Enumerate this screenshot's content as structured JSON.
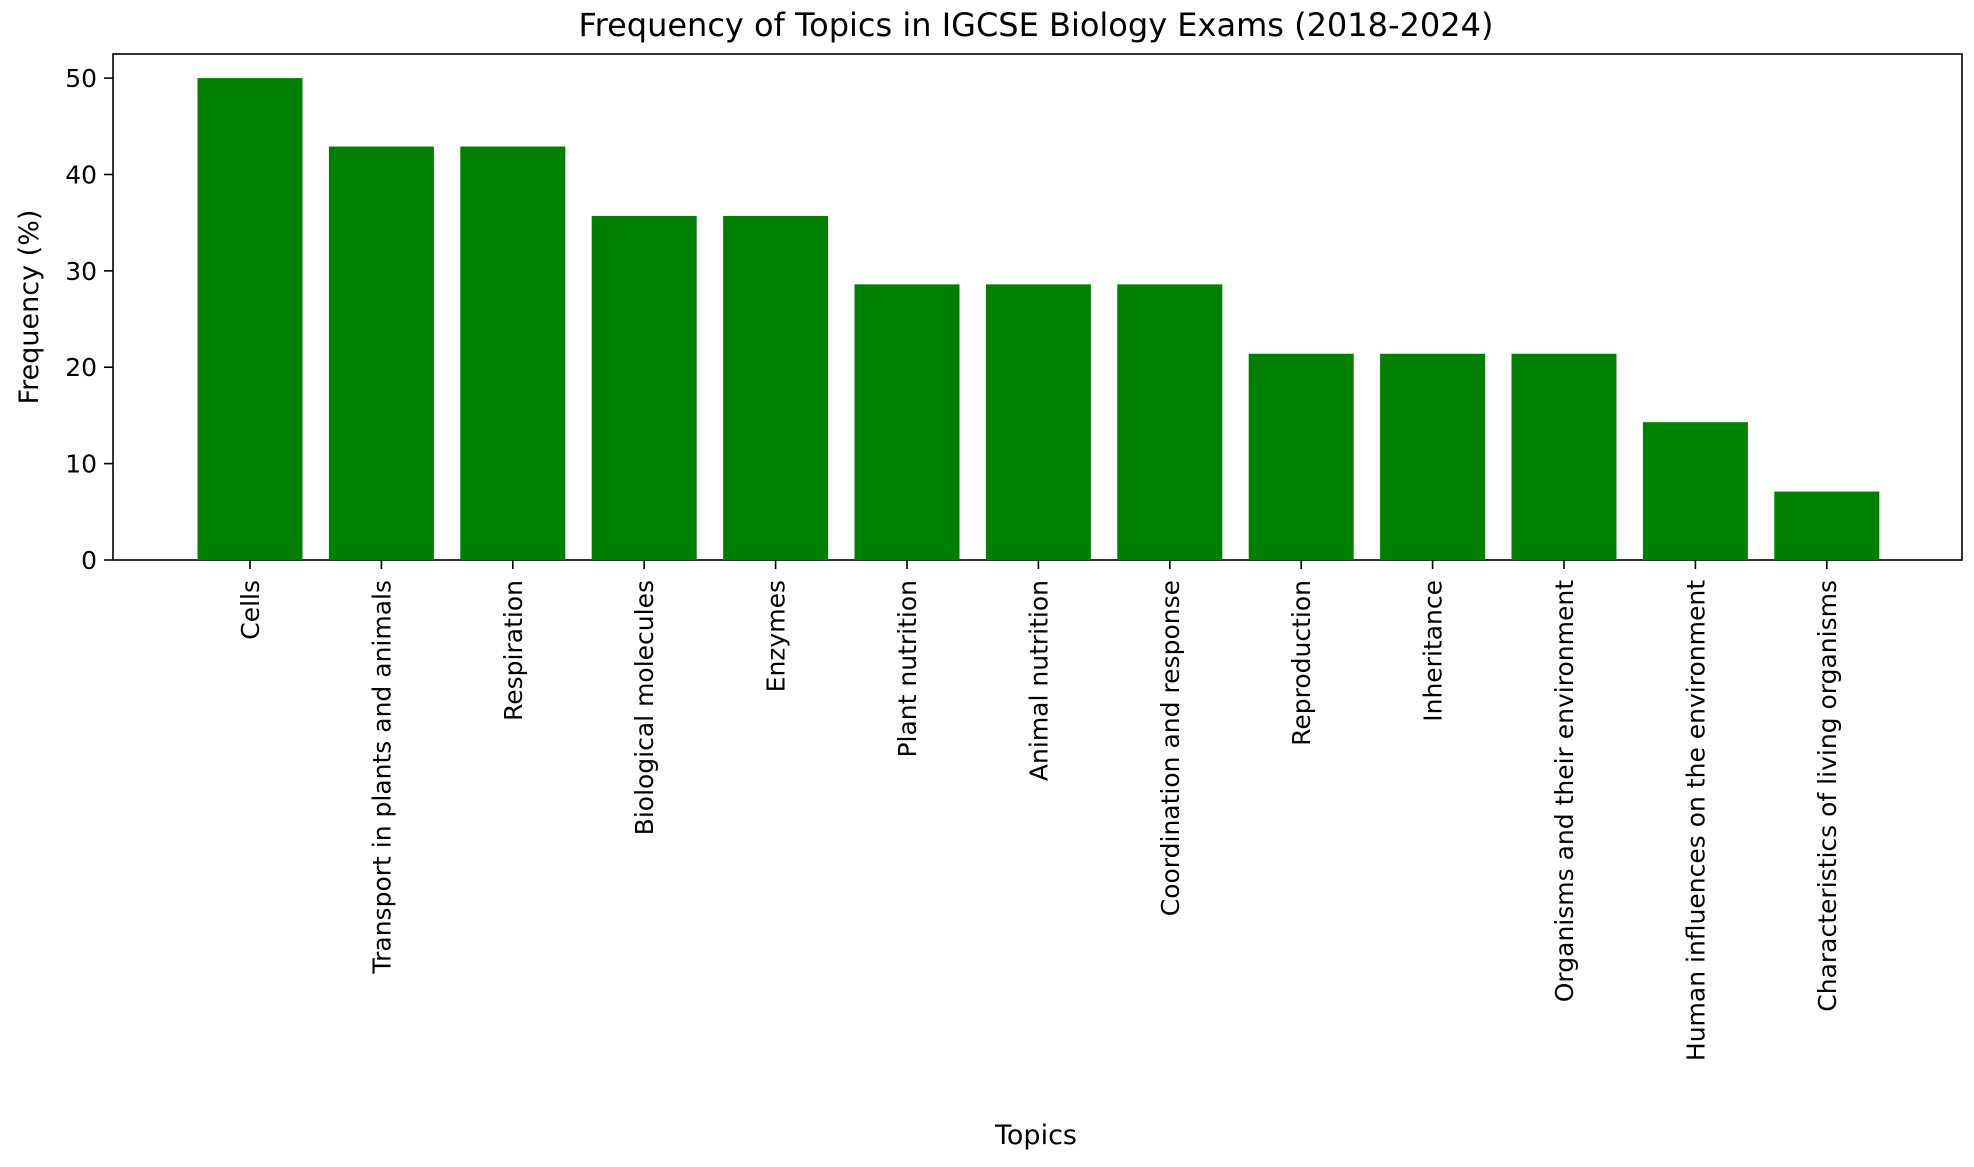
{
  "chart_data": {
    "type": "bar",
    "title": "Frequency of Topics in IGCSE Biology Exams (2018-2024)",
    "xlabel": "Topics",
    "ylabel": "Frequency (%)",
    "categories": [
      "Cells",
      "Transport in plants and animals",
      "Respiration",
      "Biological molecules",
      "Enzymes",
      "Plant nutrition",
      "Animal nutrition",
      "Coordination and response",
      "Reproduction",
      "Inheritance",
      "Organisms and their environment",
      "Human influences on the environment",
      "Characteristics of living organisms"
    ],
    "values": [
      50.0,
      42.9,
      42.9,
      35.7,
      35.7,
      28.6,
      28.6,
      28.6,
      21.4,
      21.4,
      21.4,
      14.3,
      7.1
    ],
    "ylim": [
      0,
      52.5
    ],
    "yticks": [
      0,
      10,
      20,
      30,
      40,
      50
    ],
    "grid": false,
    "bar_color": "#008000"
  }
}
